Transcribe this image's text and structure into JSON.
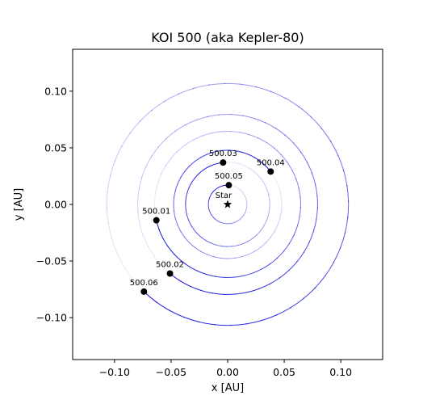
{
  "chart_data": {
    "type": "scatter",
    "title": "KOI 500 (aka Kepler-80)",
    "xlabel": "x [AU]",
    "ylabel": "y [AU]",
    "xlim": [
      -0.137,
      0.137
    ],
    "ylim": [
      -0.137,
      0.137
    ],
    "x_ticks": [
      -0.1,
      -0.05,
      0.0,
      0.05,
      0.1
    ],
    "x_tick_labels": [
      "−0.10",
      "−0.05",
      "0.00",
      "0.05",
      "0.10"
    ],
    "y_ticks": [
      -0.1,
      -0.05,
      0.0,
      0.05,
      0.1
    ],
    "y_tick_labels": [
      "−0.10",
      "−0.05",
      "0.00",
      "0.05",
      "0.10"
    ],
    "grid": false,
    "orbit_color": "#0000dd",
    "point_color": "#000000",
    "star": {
      "label": "Star",
      "x": 0.0,
      "y": 0.0
    },
    "planets": [
      {
        "name": "500.05",
        "x": 0.001,
        "y": 0.017,
        "radius": 0.017
      },
      {
        "name": "500.01",
        "x": -0.063,
        "y": -0.014,
        "radius": 0.0645
      },
      {
        "name": "500.02",
        "x": -0.051,
        "y": -0.061,
        "radius": 0.0795
      },
      {
        "name": "500.03",
        "x": -0.004,
        "y": 0.037,
        "radius": 0.0372
      },
      {
        "name": "500.04",
        "x": 0.038,
        "y": 0.029,
        "radius": 0.0478
      },
      {
        "name": "500.06",
        "x": -0.074,
        "y": -0.077,
        "radius": 0.1045
      }
    ]
  }
}
